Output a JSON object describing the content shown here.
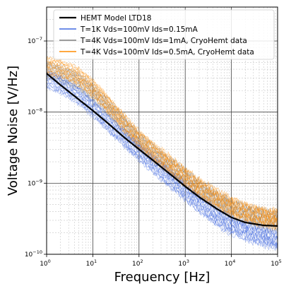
{
  "chart_data": {
    "type": "line",
    "title": "",
    "xlabel": "Frequency [Hz]",
    "ylabel": "Voltage Noise [V/Hz]",
    "xscale": "log",
    "yscale": "log",
    "xlim": [
      1,
      100000
    ],
    "ylim": [
      1e-10,
      3e-07
    ],
    "grid": "major and minor",
    "legend_position": "top-right",
    "x_ticks": [
      {
        "value": 1,
        "base": "10",
        "exp": "0"
      },
      {
        "value": 10,
        "base": "10",
        "exp": "1"
      },
      {
        "value": 100,
        "base": "10",
        "exp": "2"
      },
      {
        "value": 1000,
        "base": "10",
        "exp": "3"
      },
      {
        "value": 10000,
        "base": "10",
        "exp": "4"
      },
      {
        "value": 100000,
        "base": "10",
        "exp": "5"
      }
    ],
    "y_ticks": [
      {
        "value": 1e-10,
        "base": "10",
        "exp": "−10"
      },
      {
        "value": 1e-09,
        "base": "10",
        "exp": "−9"
      },
      {
        "value": 1e-08,
        "base": "10",
        "exp": "−8"
      },
      {
        "value": 1e-07,
        "base": "10",
        "exp": "−7"
      }
    ],
    "series": [
      {
        "name": "HEMT Model LTD18",
        "color": "#000000",
        "style": "solid-thick",
        "x": [
          1,
          2,
          5,
          10,
          20,
          50,
          100,
          200,
          500,
          1000,
          2000,
          5000,
          10000,
          20000,
          50000,
          100000
        ],
        "y": [
          3.5e-08,
          2.4e-08,
          1.5e-08,
          1.05e-08,
          7.2e-09,
          4.3e-09,
          3e-09,
          2.1e-09,
          1.3e-09,
          9e-10,
          6.4e-10,
          4.3e-10,
          3.3e-10,
          2.8e-10,
          2.55e-10,
          2.5e-10
        ]
      },
      {
        "name": "T=1K Vds=100mV Ids=0.15mA",
        "color": "#4169e1",
        "style": "band",
        "x": [
          1,
          2,
          5,
          10,
          20,
          50,
          100,
          200,
          500,
          1000,
          2000,
          5000,
          10000,
          20000,
          50000,
          100000
        ],
        "y": [
          3e-08,
          2.5e-08,
          1.7e-08,
          1.15e-08,
          7.5e-09,
          4.3e-09,
          2.8e-09,
          1.9e-09,
          1.15e-09,
          7.8e-10,
          5.3e-10,
          3.4e-10,
          2.6e-10,
          2.2e-10,
          1.8e-10,
          1.6e-10
        ]
      },
      {
        "name": "T=4K Vds=100mV Ids=1mA, CryoHemt data",
        "color": "#7f7f7f",
        "style": "band",
        "x": [
          1,
          2,
          5,
          10,
          20,
          50,
          100,
          200,
          500,
          1000,
          2000,
          5000,
          10000,
          20000,
          50000,
          100000
        ],
        "y": [
          4e-08,
          3.5e-08,
          2.7e-08,
          1.9e-08,
          1.25e-08,
          6.5e-09,
          4e-09,
          2.7e-09,
          1.7e-09,
          1.2e-09,
          8.5e-10,
          5.8e-10,
          4.5e-10,
          3.8e-10,
          3.2e-10,
          3e-10
        ]
      },
      {
        "name": "T=4K Vds=100mV Ids=0.5mA, CryoHemt data",
        "color": "#ff8c00",
        "style": "band",
        "x": [
          1,
          2,
          5,
          10,
          20,
          50,
          100,
          200,
          500,
          1000,
          2000,
          5000,
          10000,
          20000,
          50000,
          100000
        ],
        "y": [
          4.5e-08,
          4.2e-08,
          3.2e-08,
          2.2e-08,
          1.4e-08,
          7e-09,
          4.3e-09,
          2.9e-09,
          1.8e-09,
          1.25e-09,
          9e-10,
          6.2e-10,
          4.8e-10,
          4e-10,
          3.4e-10,
          3.2e-10
        ]
      }
    ]
  }
}
